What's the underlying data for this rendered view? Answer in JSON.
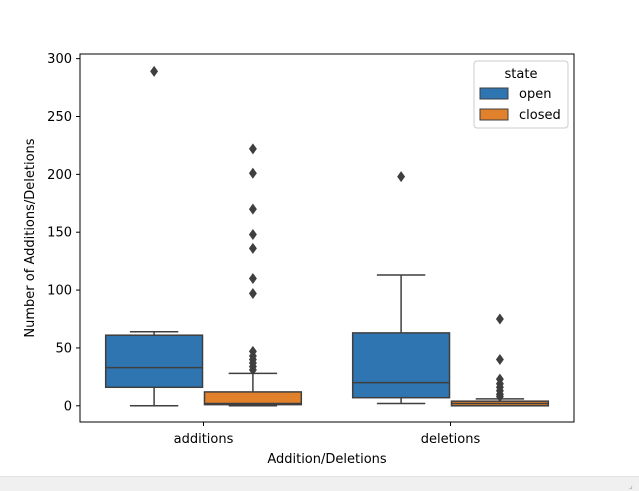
{
  "chart_data": {
    "type": "box",
    "title": "",
    "xlabel": "Addition/Deletions",
    "ylabel": "Number of Additions/Deletions",
    "categories": [
      "additions",
      "deletions"
    ],
    "ylim": [
      -14,
      304
    ],
    "yticks": [
      0,
      50,
      100,
      150,
      200,
      250,
      300
    ],
    "grid": false,
    "legend": {
      "title": "state",
      "placement": "top-right"
    },
    "series": [
      {
        "name": "open",
        "color": "#2e75b2",
        "boxes": [
          {
            "category": "additions",
            "whisker_low": 0,
            "q1": 16,
            "median": 33,
            "q3": 61,
            "whisker_high": 64,
            "outliers": [
              289
            ]
          },
          {
            "category": "deletions",
            "whisker_low": 2,
            "q1": 7,
            "median": 20,
            "q3": 63,
            "whisker_high": 113,
            "outliers": [
              198
            ]
          }
        ]
      },
      {
        "name": "closed",
        "color": "#e1812c",
        "boxes": [
          {
            "category": "additions",
            "whisker_low": 0,
            "q1": 1,
            "median": 2,
            "q3": 12,
            "whisker_high": 28,
            "outliers": [
              222,
              201,
              170,
              148,
              136,
              110,
              97,
              47,
              43,
              40,
              37,
              34,
              31
            ]
          },
          {
            "category": "deletions",
            "whisker_low": 0,
            "q1": 0,
            "median": 2,
            "q3": 4,
            "whisker_high": 6,
            "outliers": [
              75,
              40,
              23,
              19,
              16,
              13,
              10,
              8
            ]
          }
        ]
      }
    ]
  },
  "ui": {
    "resize_grip": "⌟"
  }
}
